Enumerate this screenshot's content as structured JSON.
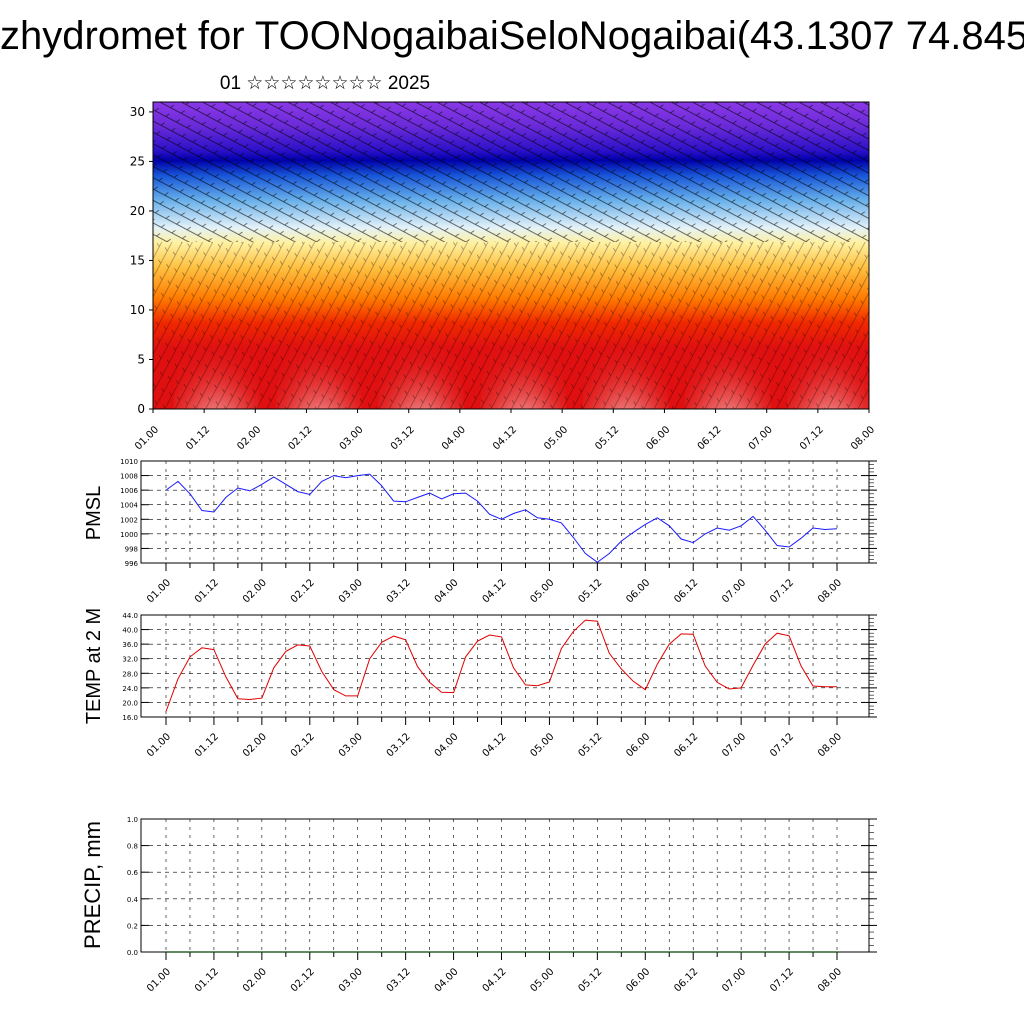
{
  "header": {
    "title": "zhydromet for TOONogaibaiSeloNogaibai(43.1307 74.845",
    "subtitle": "01 ☆☆☆☆☆☆☆☆ 2025"
  },
  "colors": {
    "pmsl_line": "#1a1aff",
    "temp_line": "#e00000",
    "precip_line": "#004400",
    "grid": "#000000"
  },
  "chart_data": [
    {
      "type": "heatmap",
      "title": "",
      "xlabel": "",
      "ylabel": "",
      "x_ticks": [
        "01.00",
        "01.12",
        "02.00",
        "02.12",
        "03.00",
        "03.12",
        "04.00",
        "04.12",
        "05.00",
        "05.12",
        "06.00",
        "06.12",
        "07.00",
        "07.12",
        "08.00"
      ],
      "y_ticks": [
        "0",
        "5",
        "10",
        "15",
        "20",
        "25",
        "30"
      ],
      "ylim": [
        0,
        31
      ],
      "colormap": [
        "#fbf0f0",
        "#e01010",
        "#ff4a00",
        "#ffa400",
        "#ffe060",
        "#d8ecf8",
        "#1a70e0",
        "#0000b0",
        "#8030e0"
      ],
      "overlay": "wind barbs",
      "grid": false
    },
    {
      "type": "line",
      "title": "",
      "xlabel": "",
      "ylabel": "PMSL",
      "x_ticks": [
        "01.00",
        "01.12",
        "02.00",
        "02.12",
        "03.00",
        "03.12",
        "04.00",
        "04.12",
        "05.00",
        "05.12",
        "06.00",
        "06.12",
        "07.00",
        "07.12",
        "08.00"
      ],
      "y_ticks": [
        "996",
        "998",
        "1000",
        "1002",
        "1004",
        "1006",
        "1008",
        "1010"
      ],
      "ylim": [
        996,
        1010
      ],
      "grid": true,
      "x": [
        0,
        3,
        6,
        9,
        12,
        15,
        18,
        21,
        24,
        27,
        30,
        33,
        36,
        39,
        42,
        45,
        48,
        51,
        54,
        57,
        60,
        63,
        66,
        69,
        72,
        75,
        78,
        81,
        84,
        87,
        90,
        93,
        96,
        99,
        102,
        105,
        108,
        111,
        114,
        117,
        120,
        123,
        126,
        129,
        132,
        135,
        138,
        141,
        144,
        147,
        150,
        153,
        156,
        159,
        162,
        165,
        168
      ],
      "series": [
        {
          "values": [
            1006.0,
            1007.2,
            1005.5,
            1003.2,
            1003.0,
            1005.0,
            1006.3,
            1005.9,
            1006.8,
            1007.8,
            1006.8,
            1005.8,
            1005.4,
            1007.2,
            1008.0,
            1007.7,
            1008.0,
            1008.2,
            1006.6,
            1004.5,
            1004.4,
            1005.0,
            1005.6,
            1004.8,
            1005.5,
            1005.6,
            1004.5,
            1002.7,
            1002.0,
            1002.8,
            1003.3,
            1002.2,
            1002.0,
            1001.5,
            999.5,
            997.3,
            996.1,
            997.3,
            999.0,
            1000.2,
            1001.3,
            1002.2,
            1001.1,
            999.3,
            998.8,
            1000.0,
            1000.8,
            1000.5,
            1001.1,
            1002.4,
            1000.5,
            998.4,
            998.2,
            999.4,
            1000.8,
            1000.6,
            1000.7
          ]
        }
      ]
    },
    {
      "type": "line",
      "title": "",
      "xlabel": "",
      "ylabel": "TEMP at 2 M",
      "x_ticks": [
        "01.00",
        "01.12",
        "02.00",
        "02.12",
        "03.00",
        "03.12",
        "04.00",
        "04.12",
        "05.00",
        "05.12",
        "06.00",
        "06.12",
        "07.00",
        "07.12",
        "08.00"
      ],
      "y_ticks": [
        "16.0",
        "20.0",
        "24.0",
        "28.0",
        "32.0",
        "36.0",
        "40.0",
        "44.0"
      ],
      "ylim": [
        16,
        44
      ],
      "grid": true,
      "x": [
        0,
        3,
        6,
        9,
        12,
        15,
        18,
        21,
        24,
        27,
        30,
        33,
        36,
        39,
        42,
        45,
        48,
        51,
        54,
        57,
        60,
        63,
        66,
        69,
        72,
        75,
        78,
        81,
        84,
        87,
        90,
        93,
        96,
        99,
        102,
        105,
        108,
        111,
        114,
        117,
        120,
        123,
        126,
        129,
        132,
        135,
        138,
        141,
        144,
        147,
        150,
        153,
        156,
        159,
        162,
        165,
        168
      ],
      "series": [
        {
          "values": [
            17.5,
            26.5,
            32.5,
            35.0,
            34.5,
            27.0,
            21.0,
            20.8,
            21.2,
            29.5,
            34.0,
            35.8,
            35.5,
            28.5,
            23.5,
            21.8,
            21.8,
            32.0,
            36.5,
            38.2,
            37.2,
            29.8,
            25.5,
            22.8,
            22.7,
            32.5,
            36.8,
            38.5,
            38.0,
            29.5,
            24.8,
            24.6,
            25.6,
            34.8,
            39.5,
            42.6,
            42.3,
            33.5,
            29.2,
            25.8,
            23.5,
            30.5,
            36.0,
            38.8,
            38.7,
            30.0,
            25.5,
            23.7,
            24.0,
            30.2,
            36.0,
            39.0,
            38.3,
            30.0,
            24.5,
            24.3,
            24.3
          ]
        }
      ]
    },
    {
      "type": "line",
      "title": "",
      "xlabel": "",
      "ylabel": "PRECIP, mm",
      "x_ticks": [
        "01.00",
        "01.12",
        "02.00",
        "02.12",
        "03.00",
        "03.12",
        "04.00",
        "04.12",
        "05.00",
        "05.12",
        "06.00",
        "06.12",
        "07.00",
        "07.12",
        "08.00"
      ],
      "y_ticks": [
        "0.0",
        "0.2",
        "0.4",
        "0.6",
        "0.8",
        "1.0"
      ],
      "ylim": [
        0,
        1
      ],
      "grid": true,
      "x": [
        0,
        168
      ],
      "series": [
        {
          "values": [
            0,
            0
          ]
        }
      ]
    }
  ]
}
